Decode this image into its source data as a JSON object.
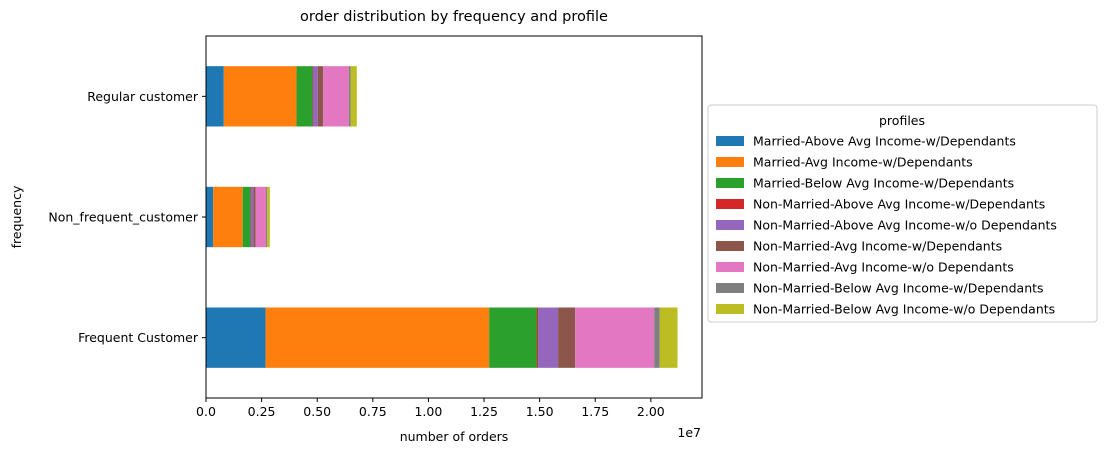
{
  "chart_data": {
    "type": "bar",
    "orientation": "horizontal",
    "stacked": true,
    "title": "order distribution by frequency and profile",
    "xlabel": "number of orders",
    "ylabel": "frequency",
    "x_scale_label": "1e7",
    "xlim": [
      0,
      22300000
    ],
    "x_ticks": [
      0,
      2500000,
      5000000,
      7500000,
      10000000,
      12500000,
      15000000,
      17500000,
      20000000
    ],
    "x_tick_labels": [
      "0.0",
      "0.25",
      "0.50",
      "0.75",
      "1.00",
      "1.25",
      "1.50",
      "1.75",
      "2.00"
    ],
    "categories": [
      "Frequent Customer",
      "Non_frequent_customer",
      "Regular customer"
    ],
    "legend_title": "profiles",
    "legend_position": "center-right outside",
    "grid": false,
    "series": [
      {
        "name": "Married-Above Avg Income-w/Dependants",
        "color": "#1f77b4",
        "values": [
          2680000,
          320000,
          800000
        ]
      },
      {
        "name": "Married-Avg Income-w/Dependants",
        "color": "#ff7f0e",
        "values": [
          10050000,
          1330000,
          3270000
        ]
      },
      {
        "name": "Married-Below Avg Income-w/Dependants",
        "color": "#2ca02c",
        "values": [
          2150000,
          350000,
          720000
        ]
      },
      {
        "name": "Non-Married-Above Avg Income-w/Dependants",
        "color": "#d62728",
        "values": [
          50000,
          20000,
          20000
        ]
      },
      {
        "name": "Non-Married-Above Avg Income-w/o Dependants",
        "color": "#9467bd",
        "values": [
          900000,
          110000,
          220000
        ]
      },
      {
        "name": "Non-Married-Avg Income-w/Dependants",
        "color": "#8c564b",
        "values": [
          770000,
          100000,
          240000
        ]
      },
      {
        "name": "Non-Married-Avg Income-w/o Dependants",
        "color": "#e377c2",
        "values": [
          3550000,
          470000,
          1150000
        ]
      },
      {
        "name": "Non-Married-Below Avg Income-w/Dependants",
        "color": "#7f7f7f",
        "values": [
          250000,
          50000,
          80000
        ]
      },
      {
        "name": "Non-Married-Below Avg Income-w/o Dependants",
        "color": "#bcbd22",
        "values": [
          800000,
          120000,
          280000
        ]
      }
    ]
  }
}
